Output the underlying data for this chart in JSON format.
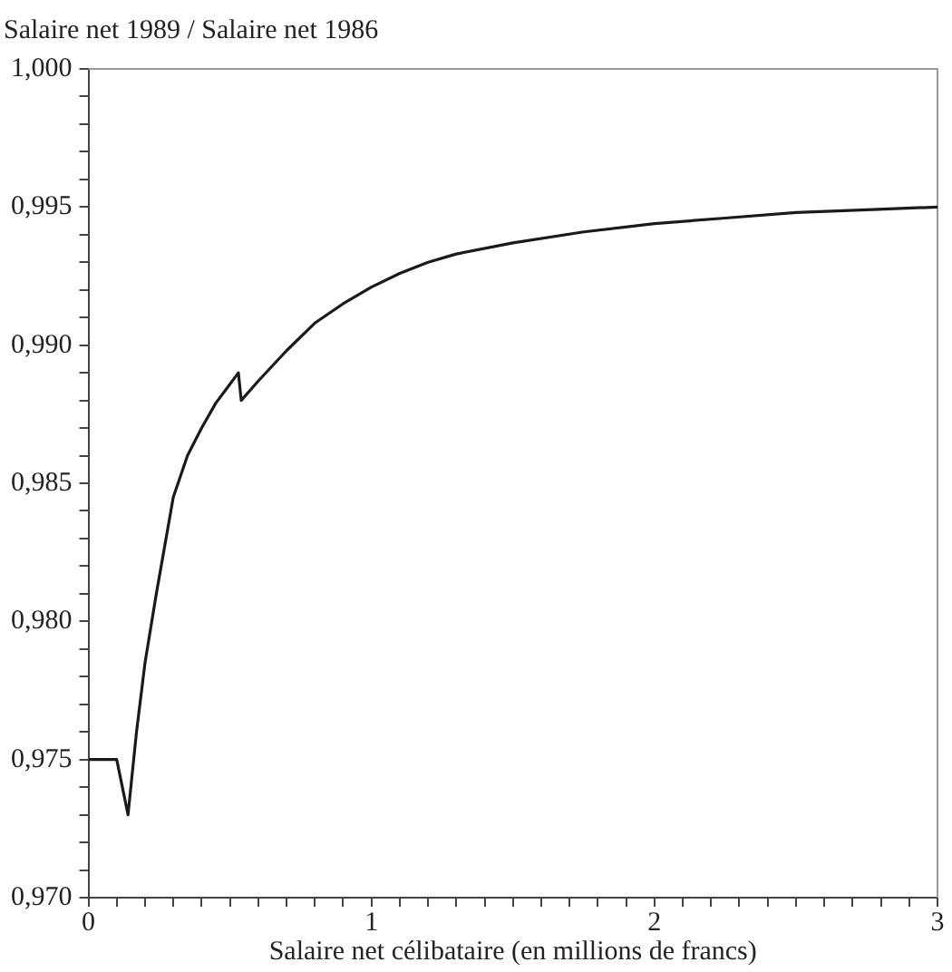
{
  "chart_data": {
    "type": "line",
    "ylabel": "Salaire net 1989 / Salaire net 1986",
    "xlabel": "Salaire net célibataire (en millions de francs)",
    "x": [
      0,
      0.1,
      0.14,
      0.17,
      0.2,
      0.24,
      0.3,
      0.35,
      0.4,
      0.45,
      0.53,
      0.54,
      0.6,
      0.7,
      0.8,
      0.9,
      1.0,
      1.1,
      1.2,
      1.3,
      1.5,
      1.75,
      2.0,
      2.25,
      2.5,
      2.75,
      3.0
    ],
    "series": [
      {
        "color": "#1a1a1a",
        "values": [
          0.975,
          0.975,
          0.973,
          0.976,
          0.9785,
          0.981,
          0.9845,
          0.986,
          0.987,
          0.9879,
          0.989,
          0.988,
          0.9887,
          0.9898,
          0.9908,
          0.9915,
          0.9921,
          0.9926,
          0.993,
          0.9933,
          0.9937,
          0.9941,
          0.9944,
          0.9946,
          0.9948,
          0.9949,
          0.995
        ]
      }
    ],
    "xlim": [
      0,
      3
    ],
    "ylim": [
      0.97,
      1.0
    ],
    "xticks": [
      0,
      {
        "value": 0.1,
        "label": null
      },
      {
        "value": 0.2,
        "label": null
      },
      {
        "value": 0.3,
        "label": null
      },
      {
        "value": 0.4,
        "label": null
      },
      {
        "value": 0.5,
        "label": null
      },
      {
        "value": 0.6,
        "label": null
      },
      {
        "value": 0.7,
        "label": null
      },
      {
        "value": 0.8,
        "label": null
      },
      {
        "value": 0.9,
        "label": null
      },
      1,
      {
        "value": 1.1,
        "label": null
      },
      {
        "value": 1.2,
        "label": null
      },
      {
        "value": 1.3,
        "label": null
      },
      {
        "value": 1.4,
        "label": null
      },
      {
        "value": 1.5,
        "label": null
      },
      {
        "value": 1.6,
        "label": null
      },
      {
        "value": 1.7,
        "label": null
      },
      {
        "value": 1.8,
        "label": null
      },
      {
        "value": 1.9,
        "label": null
      },
      2,
      {
        "value": 2.1,
        "label": null
      },
      {
        "value": 2.2,
        "label": null
      },
      {
        "value": 2.3,
        "label": null
      },
      {
        "value": 2.4,
        "label": null
      },
      {
        "value": 2.5,
        "label": null
      },
      {
        "value": 2.6,
        "label": null
      },
      {
        "value": 2.7,
        "label": null
      },
      {
        "value": 2.8,
        "label": null
      },
      {
        "value": 2.9,
        "label": null
      },
      3
    ],
    "yticks": [
      {
        "value": 0.97,
        "label": "0,970"
      },
      {
        "value": 0.971,
        "label": null
      },
      {
        "value": 0.972,
        "label": null
      },
      {
        "value": 0.973,
        "label": null
      },
      {
        "value": 0.974,
        "label": null
      },
      {
        "value": 0.975,
        "label": "0,975"
      },
      {
        "value": 0.976,
        "label": null
      },
      {
        "value": 0.977,
        "label": null
      },
      {
        "value": 0.978,
        "label": null
      },
      {
        "value": 0.979,
        "label": null
      },
      {
        "value": 0.98,
        "label": "0,980"
      },
      {
        "value": 0.981,
        "label": null
      },
      {
        "value": 0.982,
        "label": null
      },
      {
        "value": 0.983,
        "label": null
      },
      {
        "value": 0.984,
        "label": null
      },
      {
        "value": 0.985,
        "label": "0,985"
      },
      {
        "value": 0.986,
        "label": null
      },
      {
        "value": 0.987,
        "label": null
      },
      {
        "value": 0.988,
        "label": null
      },
      {
        "value": 0.989,
        "label": null
      },
      {
        "value": 0.99,
        "label": "0,990"
      },
      {
        "value": 0.991,
        "label": null
      },
      {
        "value": 0.992,
        "label": null
      },
      {
        "value": 0.993,
        "label": null
      },
      {
        "value": 0.994,
        "label": null
      },
      {
        "value": 0.995,
        "label": "0,995"
      },
      {
        "value": 0.996,
        "label": null
      },
      {
        "value": 0.997,
        "label": null
      },
      {
        "value": 0.998,
        "label": null
      },
      {
        "value": 0.999,
        "label": null
      },
      {
        "value": 1.0,
        "label": "1,000"
      }
    ],
    "grid": false,
    "legend": false,
    "marker": "none",
    "line_style": "solid"
  }
}
